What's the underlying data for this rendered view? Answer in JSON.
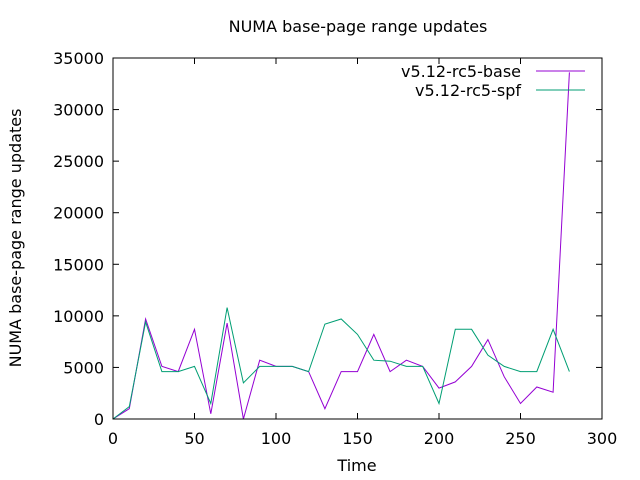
{
  "chart_data": {
    "type": "line",
    "title": "NUMA base-page range updates",
    "xlabel": "Time",
    "ylabel": "NUMA base-page range updates",
    "xlim": [
      0,
      300
    ],
    "ylim": [
      0,
      35000
    ],
    "xticks": [
      0,
      50,
      100,
      150,
      200,
      250,
      300
    ],
    "yticks": [
      0,
      5000,
      10000,
      15000,
      20000,
      25000,
      30000,
      35000
    ],
    "grid": false,
    "legend_position": "top-right",
    "series": [
      {
        "name": "v5.12-rc5-base",
        "color": "#9400d3",
        "x": [
          0,
          10,
          20,
          30,
          40,
          50,
          60,
          70,
          80,
          90,
          100,
          110,
          120,
          130,
          140,
          150,
          160,
          170,
          180,
          190,
          200,
          210,
          220,
          230,
          240,
          250,
          260,
          270,
          280
        ],
        "y": [
          0,
          1000,
          9700,
          5100,
          4600,
          8700,
          500,
          9300,
          0,
          5700,
          5100,
          5100,
          4600,
          1000,
          4600,
          4600,
          8200,
          4600,
          5700,
          5100,
          3000,
          3600,
          5100,
          7700,
          4100,
          1500,
          3100,
          2600,
          33600
        ]
      },
      {
        "name": "v5.12-rc5-spf",
        "color": "#009e73",
        "x": [
          0,
          10,
          20,
          30,
          40,
          50,
          60,
          70,
          80,
          90,
          100,
          110,
          120,
          130,
          140,
          150,
          160,
          170,
          180,
          190,
          200,
          210,
          220,
          230,
          240,
          250,
          260,
          270,
          280
        ],
        "y": [
          0,
          1200,
          9400,
          4600,
          4600,
          5100,
          1500,
          10800,
          3500,
          5100,
          5100,
          5100,
          4600,
          9200,
          9700,
          8200,
          5700,
          5600,
          5100,
          5100,
          1500,
          8700,
          8700,
          6200,
          5100,
          4600,
          4600,
          8700,
          4600
        ]
      }
    ]
  }
}
